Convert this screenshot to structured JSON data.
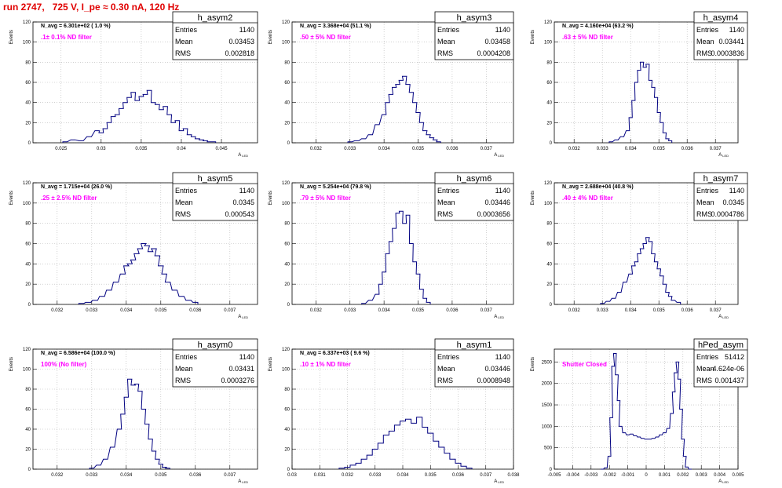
{
  "page_title": "run 2747,   725 V, I_pe ≈ 0.30 nA, 120 Hz",
  "colors": {
    "hist": "#000080",
    "title": "#e00000",
    "filter_label": "#ff00ff",
    "grid": "#b4b4b4"
  },
  "common": {
    "ylabel": "Events",
    "xlabel": "A",
    "xlabel_sub": "LED",
    "stats_labels": [
      "Entries",
      "Mean",
      "RMS"
    ]
  },
  "chart_data": [
    {
      "type": "bar",
      "name": "h_asym2",
      "navg": "N_avg = 6.301e+02 ( 1.0 %)",
      "filter": ".1± 0.1% ND filter",
      "stats": {
        "entries": "1140",
        "mean": "0.03453",
        "rms": "0.002818"
      },
      "xlim": [
        0.0215,
        0.0495
      ],
      "ylim": [
        0,
        120
      ],
      "grid": true,
      "xticks": [
        "0.025",
        "0.03",
        "0.035",
        "0.04",
        "0.045"
      ],
      "yticks": [
        "0",
        "20",
        "40",
        "60",
        "80",
        "100",
        "120"
      ],
      "x": [
        0.0255,
        0.0265,
        0.0275,
        0.0285,
        0.0295,
        0.03,
        0.0305,
        0.031,
        0.0315,
        0.032,
        0.0325,
        0.033,
        0.0335,
        0.034,
        0.0345,
        0.035,
        0.0355,
        0.036,
        0.0365,
        0.037,
        0.0375,
        0.038,
        0.0385,
        0.039,
        0.0395,
        0.04,
        0.0405,
        0.041,
        0.0415,
        0.042,
        0.0425,
        0.043,
        0.0435,
        0.044
      ],
      "y": [
        1,
        3,
        2,
        6,
        12,
        10,
        14,
        20,
        26,
        28,
        34,
        40,
        45,
        50,
        42,
        46,
        48,
        52,
        40,
        38,
        33,
        36,
        28,
        20,
        22,
        12,
        14,
        8,
        6,
        4,
        3,
        2,
        1,
        1
      ]
    },
    {
      "type": "bar",
      "name": "h_asym3",
      "navg": "N_avg = 3.368e+04 (51.1 %)",
      "filter": ".50 ± 5% ND filter",
      "stats": {
        "entries": "1140",
        "mean": "0.03458",
        "rms": "0.0004208"
      },
      "xlim": [
        0.0313,
        0.0378
      ],
      "ylim": [
        0,
        120
      ],
      "grid": true,
      "xticks": [
        "0.032",
        "0.033",
        "0.034",
        "0.035",
        "0.036",
        "0.037"
      ],
      "yticks": [
        "0",
        "20",
        "40",
        "60",
        "80",
        "100",
        "120"
      ],
      "x": [
        0.033,
        0.0332,
        0.0334,
        0.0336,
        0.0338,
        0.034,
        0.0341,
        0.0342,
        0.0343,
        0.0344,
        0.0345,
        0.0346,
        0.0347,
        0.0348,
        0.0349,
        0.035,
        0.0351,
        0.0352,
        0.0353,
        0.0354,
        0.0355,
        0.0356
      ],
      "y": [
        1,
        2,
        4,
        8,
        18,
        28,
        40,
        48,
        55,
        58,
        62,
        66,
        58,
        50,
        40,
        30,
        20,
        12,
        8,
        5,
        3,
        1
      ]
    },
    {
      "type": "bar",
      "name": "h_asym4",
      "navg": "N_avg = 4.160e+04 (63.2 %)",
      "filter": ".63 ± 5% ND filter",
      "stats": {
        "entries": "1140",
        "mean": "0.03441",
        "rms": "0.0003836"
      },
      "xlim": [
        0.0313,
        0.0378
      ],
      "ylim": [
        0,
        120
      ],
      "grid": true,
      "xticks": [
        "0.032",
        "0.033",
        "0.034",
        "0.035",
        "0.036",
        "0.037"
      ],
      "yticks": [
        "0",
        "20",
        "40",
        "60",
        "80",
        "100",
        "120"
      ],
      "x": [
        0.0333,
        0.0335,
        0.0337,
        0.0339,
        0.034,
        0.0341,
        0.0342,
        0.0343,
        0.0344,
        0.0345,
        0.0346,
        0.0347,
        0.0348,
        0.0349,
        0.035,
        0.0351,
        0.0352,
        0.0353,
        0.0354
      ],
      "y": [
        1,
        3,
        6,
        12,
        25,
        42,
        60,
        72,
        80,
        75,
        78,
        62,
        55,
        45,
        30,
        20,
        10,
        4,
        2
      ]
    },
    {
      "type": "bar",
      "name": "h_asym5",
      "navg": "N_avg = 1.715e+04 (26.0 %)",
      "filter": ".25 ± 2.5% ND filter",
      "stats": {
        "entries": "1140",
        "mean": "0.0345",
        "rms": "0.000543"
      },
      "xlim": [
        0.0313,
        0.0378
      ],
      "ylim": [
        0,
        120
      ],
      "grid": true,
      "xticks": [
        "0.032",
        "0.033",
        "0.034",
        "0.035",
        "0.036",
        "0.037"
      ],
      "yticks": [
        "0",
        "20",
        "40",
        "60",
        "80",
        "100",
        "120"
      ],
      "x": [
        0.0327,
        0.0329,
        0.0331,
        0.0333,
        0.0335,
        0.0337,
        0.0339,
        0.034,
        0.0341,
        0.0342,
        0.0343,
        0.0344,
        0.0345,
        0.0346,
        0.0347,
        0.0348,
        0.0349,
        0.035,
        0.0351,
        0.0352,
        0.0354,
        0.0356,
        0.0358,
        0.036
      ],
      "y": [
        1,
        2,
        4,
        8,
        14,
        22,
        30,
        38,
        40,
        44,
        50,
        55,
        60,
        58,
        52,
        55,
        48,
        38,
        30,
        22,
        14,
        8,
        4,
        2
      ]
    },
    {
      "type": "bar",
      "name": "h_asym6",
      "navg": "N_avg = 5.254e+04 (79.8 %)",
      "filter": ".79 ± 5% ND filter",
      "stats": {
        "entries": "1140",
        "mean": "0.03446",
        "rms": "0.0003656"
      },
      "xlim": [
        0.0313,
        0.0378
      ],
      "ylim": [
        0,
        120
      ],
      "grid": true,
      "xticks": [
        "0.032",
        "0.033",
        "0.034",
        "0.035",
        "0.036",
        "0.037"
      ],
      "yticks": [
        "0",
        "20",
        "40",
        "60",
        "80",
        "100",
        "120"
      ],
      "x": [
        0.0334,
        0.0336,
        0.0338,
        0.0339,
        0.034,
        0.0341,
        0.0342,
        0.0343,
        0.0344,
        0.0345,
        0.0346,
        0.0347,
        0.0348,
        0.0349,
        0.035,
        0.0351,
        0.0352,
        0.0353
      ],
      "y": [
        1,
        4,
        10,
        20,
        32,
        50,
        62,
        75,
        90,
        92,
        80,
        88,
        60,
        42,
        30,
        15,
        6,
        2
      ]
    },
    {
      "type": "bar",
      "name": "h_asym7",
      "navg": "N_avg = 2.688e+04 (40.8 %)",
      "filter": ".40 ± 4% ND filter",
      "stats": {
        "entries": "1140",
        "mean": "0.0345",
        "rms": "0.0004786"
      },
      "xlim": [
        0.0313,
        0.0378
      ],
      "ylim": [
        0,
        120
      ],
      "grid": true,
      "xticks": [
        "0.032",
        "0.033",
        "0.034",
        "0.035",
        "0.036",
        "0.037"
      ],
      "yticks": [
        "0",
        "20",
        "40",
        "60",
        "80",
        "100",
        "120"
      ],
      "x": [
        0.033,
        0.0332,
        0.0334,
        0.0336,
        0.0338,
        0.034,
        0.0341,
        0.0342,
        0.0343,
        0.0344,
        0.0345,
        0.0346,
        0.0347,
        0.0348,
        0.0349,
        0.035,
        0.0351,
        0.0352,
        0.0353,
        0.0354,
        0.0355,
        0.0357
      ],
      "y": [
        1,
        3,
        6,
        12,
        22,
        30,
        38,
        42,
        50,
        55,
        60,
        66,
        62,
        50,
        42,
        35,
        28,
        20,
        12,
        8,
        4,
        2
      ]
    },
    {
      "type": "bar",
      "name": "h_asym0",
      "navg": "N_avg = 6.586e+04 (100.0 %)",
      "filter": "100% (No filter)",
      "stats": {
        "entries": "1140",
        "mean": "0.03431",
        "rms": "0.0003276"
      },
      "xlim": [
        0.0313,
        0.0378
      ],
      "ylim": [
        0,
        120
      ],
      "grid": true,
      "xticks": [
        "0.032",
        "0.033",
        "0.034",
        "0.035",
        "0.036",
        "0.037"
      ],
      "yticks": [
        "0",
        "20",
        "40",
        "60",
        "80",
        "100",
        "120"
      ],
      "x": [
        0.033,
        0.0332,
        0.0334,
        0.0336,
        0.0338,
        0.0339,
        0.034,
        0.0341,
        0.0342,
        0.0343,
        0.0344,
        0.0345,
        0.0346,
        0.0347,
        0.0348,
        0.0349,
        0.035,
        0.0351,
        0.0352
      ],
      "y": [
        1,
        4,
        10,
        22,
        40,
        55,
        72,
        90,
        84,
        85,
        78,
        60,
        45,
        30,
        18,
        10,
        5,
        2,
        1
      ]
    },
    {
      "type": "bar",
      "name": "h_asym1",
      "navg": "N_avg = 6.337e+03 ( 9.6 %)",
      "filter": ".10 ± 1% ND filter",
      "stats": {
        "entries": "1140",
        "mean": "0.03446",
        "rms": "0.0008948"
      },
      "xlim": [
        0.03,
        0.038
      ],
      "ylim": [
        0,
        120
      ],
      "grid": true,
      "xticks": [
        "0.03",
        "0.031",
        "0.032",
        "0.033",
        "0.034",
        "0.035",
        "0.036",
        "0.037",
        "0.038"
      ],
      "yticks": [
        "0",
        "20",
        "40",
        "60",
        "80",
        "100",
        "120"
      ],
      "x": [
        0.0318,
        0.032,
        0.0322,
        0.0324,
        0.0326,
        0.0328,
        0.033,
        0.0332,
        0.0334,
        0.0336,
        0.0338,
        0.034,
        0.0342,
        0.0344,
        0.0346,
        0.0348,
        0.035,
        0.0352,
        0.0354,
        0.0356,
        0.0358,
        0.036,
        0.0362,
        0.0364
      ],
      "y": [
        1,
        2,
        4,
        6,
        10,
        14,
        20,
        26,
        34,
        38,
        44,
        48,
        50,
        46,
        52,
        42,
        36,
        28,
        22,
        16,
        10,
        6,
        3,
        1
      ]
    },
    {
      "type": "bar",
      "name": "hPed_asym",
      "navg": "",
      "filter": "Shutter Closed",
      "stats": {
        "entries": "51412",
        "mean": "-4.624e-06",
        "rms": "0.001437"
      },
      "xlim": [
        -0.005,
        0.005
      ],
      "ylim": [
        0,
        2800
      ],
      "grid": true,
      "xticks": [
        "-0.005",
        "-0.004",
        "-0.003",
        "-0.002",
        "-0.001",
        "0",
        "0.001",
        "0.002",
        "0.003",
        "0.004",
        "0.005"
      ],
      "yticks": [
        "0",
        "500",
        "1000",
        "1500",
        "2000",
        "2500"
      ],
      "x": [
        -0.0024,
        -0.0022,
        -0.002,
        -0.0019,
        -0.0018,
        -0.0017,
        -0.0016,
        -0.0015,
        -0.0014,
        -0.0012,
        -0.001,
        -0.0008,
        -0.0006,
        -0.0004,
        -0.0002,
        0.0,
        0.0002,
        0.0004,
        0.0006,
        0.0008,
        0.001,
        0.0012,
        0.0014,
        0.0015,
        0.0016,
        0.0017,
        0.0018,
        0.0019,
        0.002,
        0.0021,
        0.0022,
        0.0024
      ],
      "y": [
        0,
        30,
        300,
        1200,
        2400,
        2700,
        2200,
        1600,
        1000,
        850,
        800,
        820,
        780,
        750,
        720,
        700,
        700,
        720,
        750,
        800,
        850,
        950,
        1300,
        1800,
        2250,
        2500,
        2100,
        1400,
        700,
        300,
        50,
        0
      ]
    }
  ]
}
